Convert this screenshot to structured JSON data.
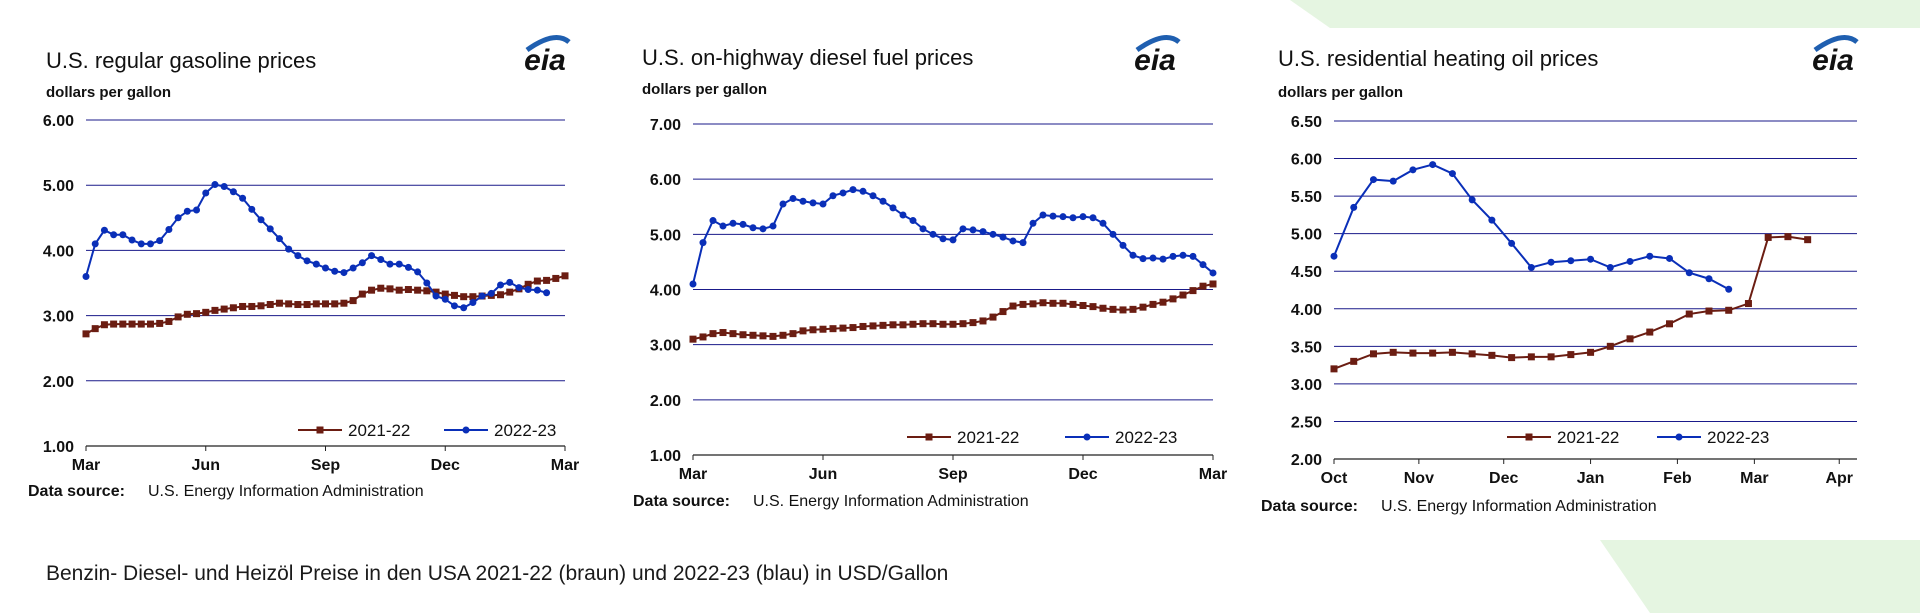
{
  "caption": "Benzin- Diesel- und Heizöl Preise in den USA 2021-22 (braun)  und 2022-23 (blau) in USD/Gallon",
  "colors": {
    "series_2021": "#6b1d12",
    "series_2022": "#0a2fb8",
    "grid": "#1a1a8a",
    "bg_accent": "#e5f5e1"
  },
  "icons": {
    "logo": "eia-logo"
  },
  "chart_data": [
    {
      "type": "line",
      "title": "U.S. regular gasoline prices",
      "ylabel": "dollars per gallon",
      "logo_text": "eia",
      "source_label": "Data source:",
      "source_text": "U.S. Energy Information Administration",
      "x_ticks": [
        "Mar",
        "Jun",
        "Sep",
        "Dec",
        "Mar"
      ],
      "x_tick_pos": [
        0,
        13,
        26,
        39,
        52
      ],
      "y_ticks": [
        "6.00",
        "5.00",
        "4.00",
        "3.00",
        "2.00",
        "1.00"
      ],
      "ylim": [
        1,
        6
      ],
      "xlim": [
        0,
        52
      ],
      "grid": true,
      "legend_position": "bottom-right",
      "series": [
        {
          "name": "2021-22",
          "color_key": "series_2021",
          "marker": "square",
          "x": [
            0,
            1,
            2,
            3,
            4,
            5,
            6,
            7,
            8,
            9,
            10,
            11,
            12,
            13,
            14,
            15,
            16,
            17,
            18,
            19,
            20,
            21,
            22,
            23,
            24,
            25,
            26,
            27,
            28,
            29,
            30,
            31,
            32,
            33,
            34,
            35,
            36,
            37,
            38,
            39,
            40,
            41,
            42,
            43,
            44,
            45,
            46,
            47,
            48,
            49,
            50,
            51,
            52
          ],
          "values": [
            2.72,
            2.8,
            2.86,
            2.87,
            2.87,
            2.87,
            2.87,
            2.87,
            2.88,
            2.91,
            2.98,
            3.02,
            3.03,
            3.05,
            3.08,
            3.1,
            3.12,
            3.14,
            3.14,
            3.15,
            3.17,
            3.19,
            3.18,
            3.17,
            3.17,
            3.18,
            3.18,
            3.18,
            3.19,
            3.23,
            3.33,
            3.39,
            3.42,
            3.41,
            3.39,
            3.4,
            3.39,
            3.38,
            3.36,
            3.33,
            3.31,
            3.29,
            3.29,
            3.3,
            3.31,
            3.32,
            3.36,
            3.41,
            3.48,
            3.53,
            3.54,
            3.57,
            3.61
          ]
        },
        {
          "name": "2022-23",
          "color_key": "series_2022",
          "marker": "circle",
          "x": [
            0,
            1,
            2,
            3,
            4,
            5,
            6,
            7,
            8,
            9,
            10,
            11,
            12,
            13,
            14,
            15,
            16,
            17,
            18,
            19,
            20,
            21,
            22,
            23,
            24,
            25,
            26,
            27,
            28,
            29,
            30,
            31,
            32,
            33,
            34,
            35,
            36,
            37,
            38,
            39,
            40,
            41,
            42,
            43,
            44,
            45,
            46,
            47,
            48,
            49,
            50
          ],
          "values": [
            3.6,
            4.1,
            4.31,
            4.24,
            4.24,
            4.16,
            4.1,
            4.1,
            4.15,
            4.32,
            4.5,
            4.6,
            4.62,
            4.88,
            5.01,
            4.98,
            4.9,
            4.8,
            4.63,
            4.47,
            4.33,
            4.18,
            4.02,
            3.92,
            3.84,
            3.79,
            3.73,
            3.68,
            3.66,
            3.73,
            3.81,
            3.92,
            3.86,
            3.79,
            3.79,
            3.74,
            3.67,
            3.5,
            3.3,
            3.25,
            3.15,
            3.12,
            3.2,
            3.3,
            3.34,
            3.47,
            3.51,
            3.43,
            3.4,
            3.39,
            3.35
          ]
        }
      ]
    },
    {
      "type": "line",
      "title": "U.S. on-highway diesel fuel prices",
      "ylabel": "dollars per gallon",
      "logo_text": "eia",
      "source_label": "Data source:",
      "source_text": "U.S. Energy Information Administration",
      "x_ticks": [
        "Mar",
        "Jun",
        "Sep",
        "Dec",
        "Mar"
      ],
      "x_tick_pos": [
        0,
        13,
        26,
        39,
        52
      ],
      "y_ticks": [
        "7.00",
        "6.00",
        "5.00",
        "4.00",
        "3.00",
        "2.00",
        "1.00"
      ],
      "ylim": [
        1,
        7
      ],
      "xlim": [
        0,
        52
      ],
      "grid": true,
      "legend_position": "bottom-right",
      "series": [
        {
          "name": "2021-22",
          "color_key": "series_2021",
          "marker": "square",
          "x": [
            0,
            1,
            2,
            3,
            4,
            5,
            6,
            7,
            8,
            9,
            10,
            11,
            12,
            13,
            14,
            15,
            16,
            17,
            18,
            19,
            20,
            21,
            22,
            23,
            24,
            25,
            26,
            27,
            28,
            29,
            30,
            31,
            32,
            33,
            34,
            35,
            36,
            37,
            38,
            39,
            40,
            41,
            42,
            43,
            44,
            45,
            46,
            47,
            48,
            49,
            50,
            51,
            52
          ],
          "values": [
            3.1,
            3.14,
            3.2,
            3.22,
            3.2,
            3.18,
            3.17,
            3.16,
            3.15,
            3.17,
            3.2,
            3.25,
            3.27,
            3.28,
            3.29,
            3.3,
            3.31,
            3.33,
            3.34,
            3.35,
            3.36,
            3.36,
            3.37,
            3.38,
            3.38,
            3.37,
            3.37,
            3.38,
            3.4,
            3.43,
            3.5,
            3.6,
            3.7,
            3.73,
            3.74,
            3.76,
            3.75,
            3.75,
            3.73,
            3.71,
            3.69,
            3.66,
            3.64,
            3.63,
            3.64,
            3.68,
            3.73,
            3.77,
            3.83,
            3.9,
            3.98,
            4.06,
            4.1
          ]
        },
        {
          "name": "2022-23",
          "color_key": "series_2022",
          "marker": "circle",
          "x": [
            0,
            1,
            2,
            3,
            4,
            5,
            6,
            7,
            8,
            9,
            10,
            11,
            12,
            13,
            14,
            15,
            16,
            17,
            18,
            19,
            20,
            21,
            22,
            23,
            24,
            25,
            26,
            27,
            28,
            29,
            30,
            31,
            32,
            33,
            34,
            35,
            36,
            37,
            38,
            39,
            40,
            41,
            42,
            43,
            44,
            45,
            46,
            47,
            48,
            49,
            50,
            51,
            52
          ],
          "values": [
            4.1,
            4.85,
            5.25,
            5.15,
            5.2,
            5.18,
            5.12,
            5.1,
            5.15,
            5.55,
            5.65,
            5.6,
            5.57,
            5.55,
            5.7,
            5.75,
            5.81,
            5.78,
            5.7,
            5.6,
            5.48,
            5.35,
            5.25,
            5.1,
            5.0,
            4.92,
            4.9,
            5.1,
            5.08,
            5.05,
            5.0,
            4.95,
            4.88,
            4.85,
            5.2,
            5.35,
            5.33,
            5.32,
            5.3,
            5.32,
            5.3,
            5.2,
            5.0,
            4.8,
            4.62,
            4.56,
            4.57,
            4.55,
            4.6,
            4.62,
            4.6,
            4.45,
            4.3
          ]
        }
      ]
    },
    {
      "type": "line",
      "title": "U.S. residential heating oil prices",
      "ylabel": "dollars per gallon",
      "logo_text": "eia",
      "source_label": "Data source:",
      "source_text": "U.S. Energy Information Administration",
      "x_ticks": [
        "Oct",
        "Nov",
        "Dec",
        "Jan",
        "Feb",
        "Mar",
        "Apr"
      ],
      "x_tick_pos": [
        0,
        4.3,
        8.6,
        13,
        17.4,
        21.3,
        25.6
      ],
      "y_ticks": [
        "6.50",
        "6.00",
        "5.50",
        "5.00",
        "4.50",
        "4.00",
        "3.50",
        "3.00",
        "2.50",
        "2.00"
      ],
      "ylim": [
        2,
        6.5
      ],
      "xlim": [
        0,
        26.5
      ],
      "grid": true,
      "legend_position": "bottom-right",
      "series": [
        {
          "name": "2021-22",
          "color_key": "series_2021",
          "marker": "square",
          "x": [
            0,
            1,
            2,
            3,
            4,
            5,
            6,
            7,
            8,
            9,
            10,
            11,
            12,
            13,
            14,
            15,
            16,
            17,
            18,
            19,
            20,
            21,
            22,
            23,
            24
          ],
          "values": [
            3.2,
            3.3,
            3.4,
            3.42,
            3.41,
            3.41,
            3.42,
            3.4,
            3.38,
            3.35,
            3.36,
            3.36,
            3.39,
            3.42,
            3.5,
            3.6,
            3.69,
            3.8,
            3.93,
            3.97,
            3.98,
            4.07,
            4.95,
            4.96,
            4.92
          ]
        },
        {
          "name": "2022-23",
          "color_key": "series_2022",
          "marker": "circle",
          "x": [
            0,
            1,
            2,
            3,
            4,
            5,
            6,
            7,
            8,
            9,
            10,
            11,
            12,
            13,
            14,
            15,
            16,
            17,
            18,
            19,
            20
          ],
          "values": [
            4.7,
            5.35,
            5.72,
            5.7,
            5.85,
            5.92,
            5.8,
            5.45,
            5.18,
            4.87,
            4.55,
            4.62,
            4.64,
            4.66,
            4.55,
            4.63,
            4.7,
            4.67,
            4.48,
            4.4,
            4.26
          ]
        }
      ]
    }
  ]
}
